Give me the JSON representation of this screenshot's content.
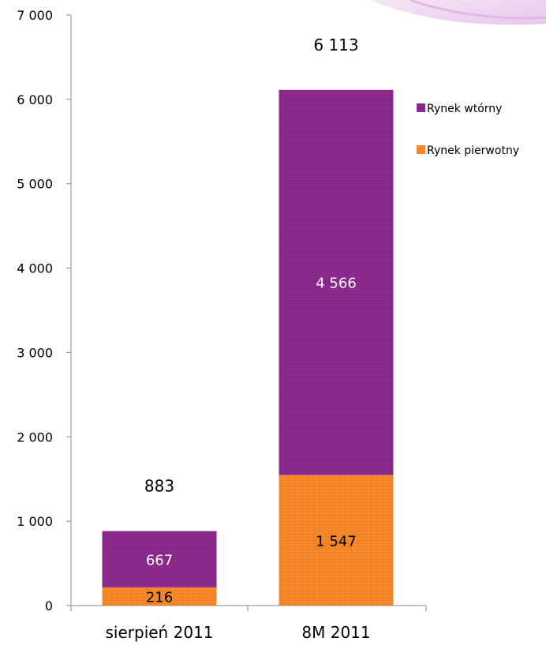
{
  "chart_data": {
    "type": "bar",
    "stacked": true,
    "title": "",
    "xlabel": "",
    "ylabel": "",
    "categories": [
      "sierpień 2011",
      "8M 2011"
    ],
    "series": [
      {
        "name": "Rynek pierwotny",
        "values": [
          216,
          1547
        ],
        "labels": [
          "216",
          "1 547"
        ],
        "color": "#f7892b",
        "label_color": "#000000"
      },
      {
        "name": "Rynek wtórny",
        "values": [
          667,
          4566
        ],
        "labels": [
          "667",
          "4 566"
        ],
        "color": "#8e2b8e",
        "label_color": "#ffffff"
      }
    ],
    "totals": [
      883,
      6113
    ],
    "total_labels": [
      "883",
      "6 113"
    ],
    "ylim": [
      0,
      7000
    ],
    "y_ticks": [
      0,
      1000,
      2000,
      3000,
      4000,
      5000,
      6000,
      7000
    ],
    "y_tick_labels": [
      "0",
      "1 000",
      "2 000",
      "3 000",
      "4 000",
      "5 000",
      "6 000",
      "7 000"
    ],
    "grid": false,
    "legend": {
      "placement": "right",
      "entries": [
        "Rynek wtórny",
        "Rynek pierwotny"
      ]
    }
  }
}
